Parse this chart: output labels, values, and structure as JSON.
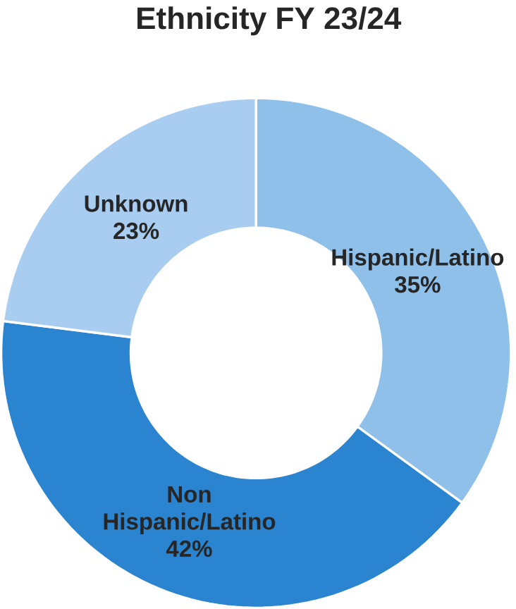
{
  "chart_data": {
    "type": "donut",
    "title": "Ethnicity  FY 23/24",
    "categories": [
      "Hispanic/Latino",
      "Non Hispanic/Latino",
      "Unknown"
    ],
    "values": [
      35,
      42,
      23
    ],
    "colors": [
      "#8fc0ea",
      "#2a84cf",
      "#a8cdf0"
    ],
    "value_labels": [
      "35%",
      "42%",
      "23%"
    ]
  }
}
